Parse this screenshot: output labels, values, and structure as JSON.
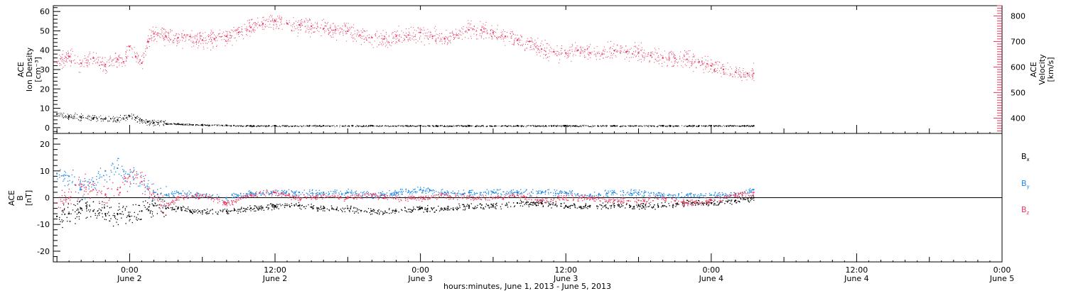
{
  "chart_data": [
    {
      "type": "scatter",
      "panel": "top",
      "ylabel_left": [
        "ACE",
        "Ion Density",
        "[cm⁻³]"
      ],
      "ylabel_right": [
        "ACE",
        "Velocity",
        "[km/s]"
      ],
      "ylim_left": [
        -3,
        63
      ],
      "ylim_right": [
        340,
        840
      ],
      "yticks_left": [
        0,
        10,
        20,
        30,
        40,
        50,
        60
      ],
      "yticks_right": [
        400,
        500,
        600,
        700,
        800
      ],
      "colors": {
        "density": "#000000",
        "velocity": "#e8365e"
      },
      "series": [
        {
          "name": "Velocity",
          "axis": "right",
          "color": "#e8365e",
          "x": [
            -6,
            -5,
            -4,
            -3,
            -2,
            -1,
            -0.5,
            0,
            0.5,
            1,
            1.5,
            2,
            3,
            4,
            5,
            6,
            7,
            8,
            9,
            10,
            11,
            12,
            13,
            14,
            15,
            16,
            17,
            18,
            19,
            20,
            21,
            22,
            23,
            24,
            25,
            26,
            27,
            28,
            29,
            30,
            31,
            32,
            33,
            34,
            35,
            36,
            37,
            38,
            39,
            40,
            41,
            42,
            43,
            44,
            45,
            46,
            47,
            48,
            49,
            50,
            51,
            51.5
          ],
          "values": [
            620,
            640,
            615,
            635,
            610,
            630,
            620,
            680,
            640,
            615,
            700,
            730,
            720,
            715,
            720,
            705,
            710,
            720,
            735,
            755,
            770,
            780,
            770,
            765,
            760,
            750,
            745,
            740,
            725,
            715,
            710,
            720,
            725,
            735,
            720,
            710,
            725,
            745,
            745,
            735,
            720,
            705,
            700,
            670,
            660,
            655,
            665,
            655,
            650,
            665,
            660,
            655,
            645,
            635,
            635,
            630,
            620,
            605,
            590,
            580,
            575,
            575
          ]
        },
        {
          "name": "Ion Density",
          "axis": "left",
          "color": "#000000",
          "x": [
            -6,
            -5,
            -4,
            -3,
            -2,
            -1,
            0,
            0.5,
            1,
            1.5,
            2,
            3,
            4,
            6,
            8,
            10,
            12,
            16,
            20,
            24,
            28,
            32,
            36,
            40,
            44,
            48,
            51.5
          ],
          "values": [
            7,
            6,
            5.5,
            5,
            4.5,
            4,
            6,
            5,
            4,
            3,
            2.5,
            2,
            2,
            1.5,
            1.2,
            1,
            1,
            1,
            1,
            1,
            1,
            1,
            1,
            1,
            1,
            1,
            1
          ]
        }
      ]
    },
    {
      "type": "scatter",
      "panel": "bottom",
      "ylabel_left": [
        "ACE",
        "B",
        "[nT]"
      ],
      "ylim": [
        -24,
        24
      ],
      "yticks": [
        -20,
        -10,
        0,
        10,
        20
      ],
      "zero_line": true,
      "series": [
        {
          "name": "Bx",
          "color": "#000000",
          "x": [
            -6,
            -5,
            -4,
            -3,
            -2,
            -1,
            0,
            1,
            2,
            3,
            4,
            6,
            8,
            10,
            12,
            14,
            16,
            18,
            20,
            22,
            24,
            26,
            28,
            30,
            32,
            34,
            36,
            38,
            40,
            42,
            44,
            46,
            48,
            50,
            51.5
          ],
          "values": [
            -7,
            -6,
            -4,
            -5,
            -6,
            -6,
            -7,
            -5,
            -3,
            -4,
            -4,
            -5,
            -5,
            -4,
            -3,
            -3,
            -4,
            -4,
            -5,
            -5,
            -4,
            -4,
            -3,
            -3,
            -2,
            -2,
            -3,
            -3,
            -3,
            -3,
            -3,
            -2,
            -2,
            -1,
            0
          ]
        },
        {
          "name": "By",
          "color": "#1e88e5",
          "x": [
            -6,
            -5,
            -4,
            -3,
            -2,
            -1,
            0,
            1,
            2,
            3,
            4,
            6,
            8,
            10,
            12,
            14,
            16,
            18,
            20,
            22,
            24,
            26,
            28,
            30,
            32,
            34,
            36,
            38,
            40,
            42,
            44,
            46,
            48,
            50,
            51.5
          ],
          "values": [
            9,
            8,
            3,
            6,
            10,
            11,
            8,
            6,
            2,
            1,
            2,
            1,
            0,
            2,
            2,
            2,
            2,
            2,
            1,
            2,
            3,
            2,
            2,
            2,
            2,
            2,
            2,
            1,
            2,
            2,
            1,
            1,
            1,
            1,
            3
          ]
        },
        {
          "name": "Bz",
          "color": "#e8365e",
          "x": [
            -6,
            -5,
            -4,
            -3,
            -2,
            -1,
            0,
            1,
            2,
            3,
            4,
            6,
            8,
            10,
            12,
            14,
            16,
            18,
            20,
            22,
            24,
            26,
            28,
            30,
            32,
            34,
            36,
            38,
            40,
            42,
            44,
            46,
            48,
            50,
            51.5
          ],
          "values": [
            -2,
            0,
            5,
            3,
            1,
            3,
            8,
            6,
            0,
            -3,
            0,
            1,
            -2,
            1,
            2,
            0,
            1,
            0,
            1,
            0,
            0,
            1,
            0,
            0,
            1,
            -1,
            0,
            0,
            -1,
            -1,
            0,
            -2,
            -1,
            1,
            2
          ]
        }
      ]
    }
  ],
  "legend": [
    {
      "label": "B",
      "sub": "x",
      "color": "#000000"
    },
    {
      "label": "B",
      "sub": "y",
      "color": "#1e88e5"
    },
    {
      "label": "B",
      "sub": "z",
      "color": "#e8365e"
    }
  ],
  "xaxis": {
    "xlim": [
      -6.3,
      72
    ],
    "major_ticks": [
      {
        "x": 0,
        "time": "0:00",
        "day": "June 2"
      },
      {
        "x": 12,
        "time": "12:00",
        "day": "June 2"
      },
      {
        "x": 24,
        "time": "0:00",
        "day": "June 3"
      },
      {
        "x": 36,
        "time": "12:00",
        "day": "June 3"
      },
      {
        "x": 48,
        "time": "0:00",
        "day": "June 4"
      },
      {
        "x": 60,
        "time": "12:00",
        "day": "June 4"
      },
      {
        "x": 72,
        "time": "0:00",
        "day": "June 5"
      }
    ],
    "caption": "hours:minutes, June  1, 2013 - June  5, 2013"
  }
}
